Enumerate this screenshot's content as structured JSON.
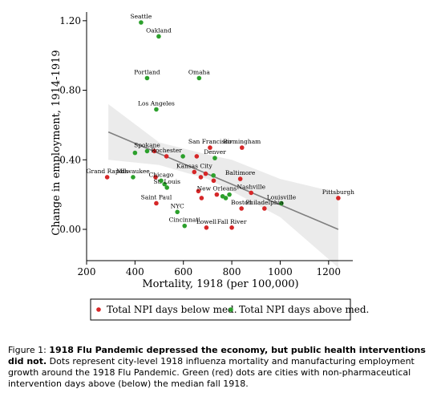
{
  "chart_data": {
    "type": "scatter",
    "xlabel": "Mortality, 1918 (per 100,000)",
    "ylabel": "Change in employment, 1914-1919",
    "xlim": [
      200,
      1300
    ],
    "ylim": [
      -0.18,
      1.25
    ],
    "x_ticks": [
      200,
      400,
      600,
      800,
      1000,
      1200
    ],
    "y_ticks": [
      0.0,
      0.4,
      0.8,
      1.2
    ],
    "x_tick_labels": [
      "200",
      "400",
      "600",
      "800",
      "1000",
      "1200"
    ],
    "y_tick_labels": [
      "0.00",
      "0.40",
      "0.80",
      "1.20"
    ],
    "colors": {
      "below": "#d62728",
      "above": "#2ca02c",
      "fit": "#7f7f7f",
      "ci": "#ebebeb"
    },
    "fit_line": {
      "x": [
        290,
        1240
      ],
      "y": [
        0.56,
        0.0
      ]
    },
    "ci_band": {
      "x": [
        290,
        500,
        700,
        800,
        1000,
        1240
      ],
      "upper": [
        0.72,
        0.5,
        0.43,
        0.4,
        0.29,
        0.21
      ],
      "lower": [
        0.4,
        0.37,
        0.29,
        0.22,
        0.07,
        -0.22
      ]
    },
    "series": [
      {
        "name": "Total NPI days below med.",
        "group": "below",
        "points": [
          {
            "label": "Grand Rapids",
            "x": 285,
            "y": 0.3
          },
          {
            "label": "",
            "x": 480,
            "y": 0.45
          },
          {
            "label": "Rochester",
            "x": 530,
            "y": 0.42
          },
          {
            "label": "",
            "x": 485,
            "y": 0.3
          },
          {
            "label": "Saint Paul",
            "x": 488,
            "y": 0.15
          },
          {
            "label": "San Francisco",
            "x": 710,
            "y": 0.47
          },
          {
            "label": "",
            "x": 655,
            "y": 0.42
          },
          {
            "label": "Birmingham",
            "x": 842,
            "y": 0.47
          },
          {
            "label": "Kansas City",
            "x": 645,
            "y": 0.33
          },
          {
            "label": "",
            "x": 672,
            "y": 0.3
          },
          {
            "label": "",
            "x": 692,
            "y": 0.32
          },
          {
            "label": "",
            "x": 725,
            "y": 0.28
          },
          {
            "label": "",
            "x": 662,
            "y": 0.22
          },
          {
            "label": "",
            "x": 675,
            "y": 0.18
          },
          {
            "label": "New Orleans",
            "x": 738,
            "y": 0.2
          },
          {
            "label": "Baltimore",
            "x": 835,
            "y": 0.29
          },
          {
            "label": "Nashville",
            "x": 880,
            "y": 0.21
          },
          {
            "label": "Boston",
            "x": 840,
            "y": 0.12
          },
          {
            "label": "Philadelphia",
            "x": 935,
            "y": 0.12
          },
          {
            "label": "Lowell",
            "x": 695,
            "y": 0.01
          },
          {
            "label": "Fall River",
            "x": 800,
            "y": 0.01
          },
          {
            "label": "Pittsburgh",
            "x": 1240,
            "y": 0.18
          }
        ]
      },
      {
        "name": "Total NPI days above med.",
        "group": "above",
        "points": [
          {
            "label": "Seattle",
            "x": 425,
            "y": 1.19
          },
          {
            "label": "Oakland",
            "x": 498,
            "y": 1.11
          },
          {
            "label": "Portland",
            "x": 450,
            "y": 0.87
          },
          {
            "label": "Omaha",
            "x": 665,
            "y": 0.87
          },
          {
            "label": "Los Angeles",
            "x": 488,
            "y": 0.69
          },
          {
            "label": "Spokane",
            "x": 450,
            "y": 0.45
          },
          {
            "label": "",
            "x": 400,
            "y": 0.44
          },
          {
            "label": "",
            "x": 598,
            "y": 0.42
          },
          {
            "label": "Denver",
            "x": 730,
            "y": 0.41
          },
          {
            "label": "Milwaukee",
            "x": 392,
            "y": 0.3
          },
          {
            "label": "Chicago",
            "x": 508,
            "y": 0.28
          },
          {
            "label": "St. Louis",
            "x": 532,
            "y": 0.24
          },
          {
            "label": "",
            "x": 522,
            "y": 0.26
          },
          {
            "label": "",
            "x": 724,
            "y": 0.31
          },
          {
            "label": "",
            "x": 762,
            "y": 0.19
          },
          {
            "label": "",
            "x": 775,
            "y": 0.18
          },
          {
            "label": "",
            "x": 790,
            "y": 0.2
          },
          {
            "label": "Louisville",
            "x": 1005,
            "y": 0.15
          },
          {
            "label": "NYC",
            "x": 575,
            "y": 0.1
          },
          {
            "label": "Cincinnati",
            "x": 605,
            "y": 0.02
          }
        ]
      }
    ]
  },
  "legend": {
    "below_label": "Total NPI days below med.",
    "above_label": "Total NPI days above med."
  },
  "caption": {
    "prefix": "Figure 1: ",
    "bold": "1918 Flu Pandemic depressed the economy, but public health interventions did not.",
    "text": " Dots represent city-level 1918 influenza mortality and manufacturing employment growth around the 1918 Flu Pandemic. Green (red) dots are cities with non-pharmaceutical intervention days above (below) the median fall 1918."
  }
}
